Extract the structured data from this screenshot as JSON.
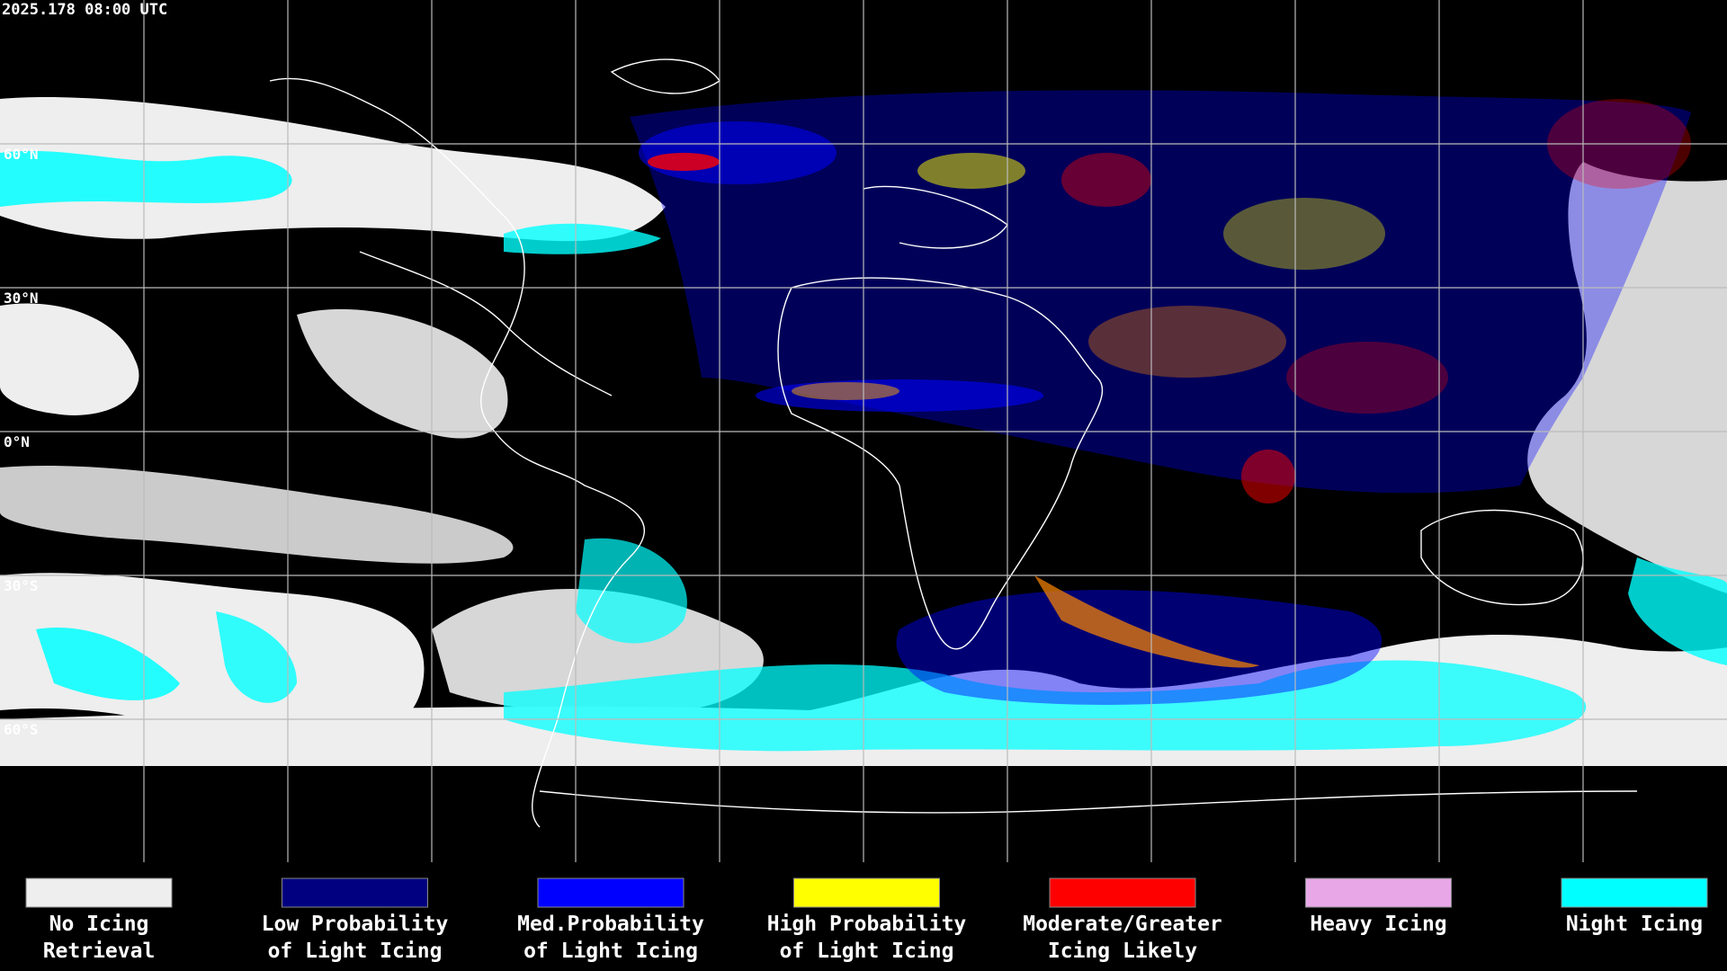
{
  "header": {
    "timestamp": "2025.178 08:00 UTC"
  },
  "map": {
    "latitude_labels": [
      "60°N",
      "30°N",
      "0°N",
      "30°S",
      "60°S"
    ]
  },
  "legend": {
    "items": [
      {
        "lines": [
          "No Icing",
          "Retrieval"
        ],
        "color": "#eeeeee"
      },
      {
        "lines": [
          "Low Probability",
          "of Light Icing"
        ],
        "color": "#000080"
      },
      {
        "lines": [
          "Med.Probability",
          "of Light Icing"
        ],
        "color": "#0000ff"
      },
      {
        "lines": [
          "High Probability",
          "of Light Icing"
        ],
        "color": "#ffff00"
      },
      {
        "lines": [
          "Moderate/Greater",
          "Icing Likely"
        ],
        "color": "#ff0000"
      },
      {
        "lines": [
          "Heavy Icing",
          ""
        ],
        "color": "#e8a8e8"
      },
      {
        "lines": [
          "Night Icing",
          ""
        ],
        "color": "#00ffff"
      }
    ]
  }
}
